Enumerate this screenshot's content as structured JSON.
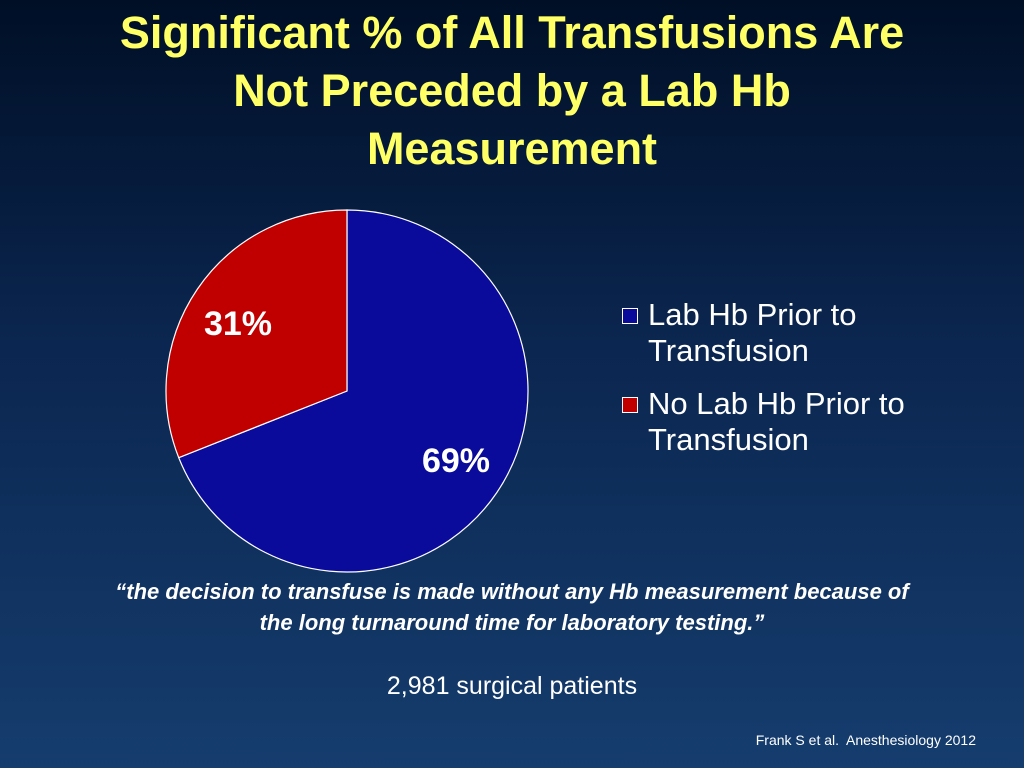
{
  "slide": {
    "title_lines": [
      "Significant % of All Transfusions Are",
      "Not Preceded by a Lab Hb",
      "Measurement"
    ],
    "quote_lines": [
      "“the decision to transfuse is made without any Hb measurement because of",
      "the long turnaround time for laboratory testing.”"
    ],
    "patients": "2,981 surgical patients",
    "citation": "Frank S et al.  Anesthesiology 2012"
  },
  "chart_data": {
    "type": "pie",
    "title": "",
    "categories": [
      "Lab Hb Prior to Transfusion",
      "No Lab Hb Prior to Transfusion"
    ],
    "values": [
      69,
      31
    ],
    "data_labels": [
      "69%",
      "31%"
    ],
    "colors": [
      "#0a0a9b",
      "#c00000"
    ],
    "start_angle_deg": 0,
    "direction": "clockwise",
    "legend": {
      "position": "right",
      "entries": [
        {
          "label": "Lab Hb Prior to Transfusion",
          "color": "#0a0a9b"
        },
        {
          "label": "No Lab Hb Prior to Transfusion",
          "color": "#c00000"
        }
      ]
    }
  },
  "colors": {
    "title": "#ffff66",
    "text": "#ffffff",
    "background_top": "#000f26",
    "background_bottom": "#153d6e"
  }
}
